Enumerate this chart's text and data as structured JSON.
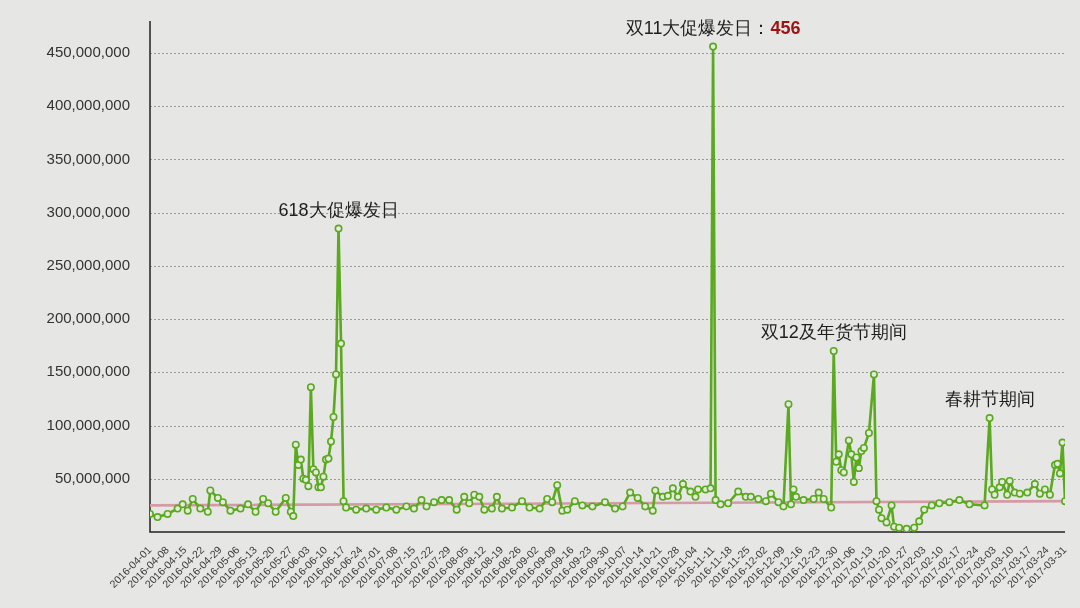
{
  "chart_data": {
    "type": "line",
    "annotations": [
      {
        "text": "618大促爆发日",
        "x": "2016-06-15",
        "y": 285000000
      },
      {
        "text": "双11大促爆发日：456",
        "x": "2016-11-11",
        "y": 456000000
      },
      {
        "text": "双12及年货节期间",
        "x": "2016-12-29",
        "y": 170000000
      },
      {
        "text": "春耕节期间",
        "x": "2017-03-01",
        "y": 107000000
      }
    ],
    "xlim": [
      "2016-04-01",
      "2017-03-31"
    ],
    "xticks": [
      "2016-04-01",
      "2016-04-08",
      "2016-04-15",
      "2016-04-22",
      "2016-04-29",
      "2016-05-06",
      "2016-05-13",
      "2016-05-20",
      "2016-05-27",
      "2016-06-03",
      "2016-06-10",
      "2016-06-17",
      "2016-06-24",
      "2016-07-01",
      "2016-07-08",
      "2016-07-15",
      "2016-07-22",
      "2016-07-29",
      "2016-08-05",
      "2016-08-12",
      "2016-08-19",
      "2016-08-26",
      "2016-09-02",
      "2016-09-09",
      "2016-09-16",
      "2016-09-23",
      "2016-09-30",
      "2016-10-07",
      "2016-10-14",
      "2016-10-21",
      "2016-10-28",
      "2016-11-04",
      "2016-11-11",
      "2016-11-18",
      "2016-11-25",
      "2016-12-02",
      "2016-12-09",
      "2016-12-16",
      "2016-12-23",
      "2016-12-30",
      "2017-01-06",
      "2017-01-13",
      "2017-01-20",
      "2017-01-27",
      "2017-02-03",
      "2017-02-10",
      "2017-02-17",
      "2017-02-24",
      "2017-03-03",
      "2017-03-10",
      "2017-03-17",
      "2017-03-24",
      "2017-03-31"
    ],
    "ylim": [
      0,
      480000000
    ],
    "yticks": [
      {
        "value": 50000000,
        "label": "50,000,000"
      },
      {
        "value": 100000000,
        "label": "100,000,000"
      },
      {
        "value": 150000000,
        "label": "150,000,000"
      },
      {
        "value": 200000000,
        "label": "200,000,000"
      },
      {
        "value": 250000000,
        "label": "250,000,000"
      },
      {
        "value": 300000000,
        "label": "300,000,000"
      },
      {
        "value": 350000000,
        "label": "350,000,000"
      },
      {
        "value": 400000000,
        "label": "400,000,000"
      },
      {
        "value": 450000000,
        "label": "450,000,000"
      }
    ],
    "grid": "y",
    "marker": "circle",
    "series": [
      {
        "color": "#5aa91f",
        "x": [
          "2016-04-01",
          "2016-04-04",
          "2016-04-08",
          "2016-04-12",
          "2016-04-14",
          "2016-04-16",
          "2016-04-18",
          "2016-04-21",
          "2016-04-24",
          "2016-04-25",
          "2016-04-28",
          "2016-04-30",
          "2016-05-03",
          "2016-05-07",
          "2016-05-10",
          "2016-05-13",
          "2016-05-16",
          "2016-05-18",
          "2016-05-21",
          "2016-05-25",
          "2016-05-27",
          "2016-05-28",
          "2016-05-29",
          "2016-05-30",
          "2016-05-31",
          "2016-06-01",
          "2016-06-02",
          "2016-06-03",
          "2016-06-04",
          "2016-06-05",
          "2016-06-06",
          "2016-06-07",
          "2016-06-08",
          "2016-06-09",
          "2016-06-10",
          "2016-06-11",
          "2016-06-12",
          "2016-06-13",
          "2016-06-14",
          "2016-06-15",
          "2016-06-16",
          "2016-06-17",
          "2016-06-18",
          "2016-06-22",
          "2016-06-26",
          "2016-06-30",
          "2016-07-04",
          "2016-07-08",
          "2016-07-12",
          "2016-07-15",
          "2016-07-18",
          "2016-07-20",
          "2016-07-23",
          "2016-07-26",
          "2016-07-29",
          "2016-08-01",
          "2016-08-04",
          "2016-08-06",
          "2016-08-08",
          "2016-08-10",
          "2016-08-12",
          "2016-08-15",
          "2016-08-17",
          "2016-08-19",
          "2016-08-23",
          "2016-08-27",
          "2016-08-30",
          "2016-09-03",
          "2016-09-06",
          "2016-09-08",
          "2016-09-10",
          "2016-09-12",
          "2016-09-14",
          "2016-09-17",
          "2016-09-20",
          "2016-09-24",
          "2016-09-29",
          "2016-10-03",
          "2016-10-06",
          "2016-10-09",
          "2016-10-12",
          "2016-10-15",
          "2016-10-18",
          "2016-10-19",
          "2016-10-22",
          "2016-10-24",
          "2016-10-26",
          "2016-10-28",
          "2016-10-30",
          "2016-11-02",
          "2016-11-04",
          "2016-11-05",
          "2016-11-08",
          "2016-11-10",
          "2016-11-11",
          "2016-11-12",
          "2016-11-14",
          "2016-11-17",
          "2016-11-21",
          "2016-11-24",
          "2016-11-26",
          "2016-11-29",
          "2016-12-02",
          "2016-12-04",
          "2016-12-07",
          "2016-12-09",
          "2016-12-11",
          "2016-12-12",
          "2016-12-13",
          "2016-12-14",
          "2016-12-17",
          "2016-12-21",
          "2016-12-23",
          "2016-12-25",
          "2016-12-28",
          "2016-12-29",
          "2016-12-30",
          "2016-12-31",
          "2017-01-01",
          "2017-01-02",
          "2017-01-04",
          "2017-01-05",
          "2017-01-06",
          "2017-01-07",
          "2017-01-08",
          "2017-01-09",
          "2017-01-10",
          "2017-01-12",
          "2017-01-14",
          "2017-01-15",
          "2017-01-16",
          "2017-01-17",
          "2017-01-19",
          "2017-01-21",
          "2017-01-22",
          "2017-01-24",
          "2017-01-27",
          "2017-01-30",
          "2017-02-01",
          "2017-02-03",
          "2017-02-06",
          "2017-02-09",
          "2017-02-13",
          "2017-02-17",
          "2017-02-21",
          "2017-02-27",
          "2017-03-01",
          "2017-03-02",
          "2017-03-03",
          "2017-03-05",
          "2017-03-06",
          "2017-03-08",
          "2017-03-09",
          "2017-03-11",
          "2017-03-13",
          "2017-03-16",
          "2017-03-19",
          "2017-03-21",
          "2017-03-23",
          "2017-03-25",
          "2017-03-27",
          "2017-03-28",
          "2017-03-29",
          "2017-03-30",
          "2017-03-31"
        ],
        "values": [
          17000000,
          14000000,
          17000000,
          22000000,
          26000000,
          20000000,
          31000000,
          22000000,
          19000000,
          39000000,
          32000000,
          28000000,
          20000000,
          22000000,
          26000000,
          19000000,
          31000000,
          27000000,
          19000000,
          32000000,
          19000000,
          15000000,
          82000000,
          63000000,
          68000000,
          50000000,
          49000000,
          43000000,
          136000000,
          59000000,
          56000000,
          42000000,
          42000000,
          52000000,
          68000000,
          69000000,
          85000000,
          108000000,
          148000000,
          285000000,
          177000000,
          29000000,
          23000000,
          21000000,
          22000000,
          21000000,
          23000000,
          21000000,
          24000000,
          22000000,
          30000000,
          24000000,
          28000000,
          30000000,
          30000000,
          21000000,
          33000000,
          27000000,
          35000000,
          33000000,
          21000000,
          22000000,
          33000000,
          22000000,
          23000000,
          29000000,
          23000000,
          22000000,
          31000000,
          28000000,
          44000000,
          20000000,
          21000000,
          29000000,
          25000000,
          24000000,
          28000000,
          22000000,
          24000000,
          37000000,
          32000000,
          24000000,
          20000000,
          39000000,
          33000000,
          34000000,
          41000000,
          33000000,
          45000000,
          38000000,
          33000000,
          40000000,
          40000000,
          41000000,
          456000000,
          30000000,
          26000000,
          27000000,
          38000000,
          33000000,
          33000000,
          31000000,
          29000000,
          36000000,
          28000000,
          24000000,
          120000000,
          26000000,
          40000000,
          33000000,
          30000000,
          31000000,
          37000000,
          31000000,
          23000000,
          170000000,
          66000000,
          73000000,
          58000000,
          56000000,
          86000000,
          73000000,
          47000000,
          70000000,
          60000000,
          76000000,
          79000000,
          93000000,
          148000000,
          29000000,
          21000000,
          13000000,
          9000000,
          25000000,
          5000000,
          4000000,
          3000000,
          4000000,
          10000000,
          21000000,
          25000000,
          27000000,
          28000000,
          30000000,
          26000000,
          25000000,
          107000000,
          40000000,
          35000000,
          42000000,
          47000000,
          35000000,
          48000000,
          37000000,
          36000000,
          37000000,
          45000000,
          36000000,
          40000000,
          35000000,
          63000000,
          64000000,
          55000000,
          84000000,
          29000000
        ]
      },
      {
        "type": "line",
        "marker": "none",
        "color": "#d49aa5",
        "x": [
          "2016-04-01",
          "2017-03-31"
        ],
        "values": [
          25000000,
          29000000
        ]
      }
    ]
  }
}
